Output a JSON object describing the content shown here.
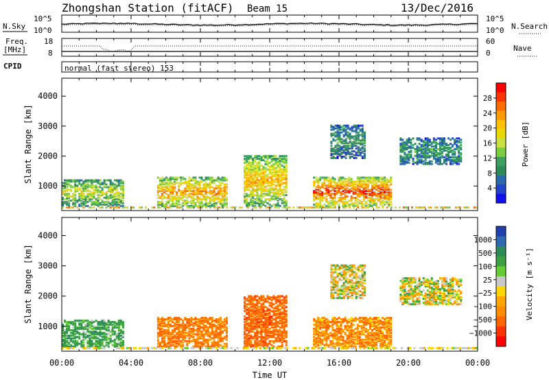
{
  "header": {
    "station": "Zhongshan Station (fitACF)",
    "beam": "Beam 15",
    "date": "13/Dec/2016"
  },
  "noise_panel": {
    "left_label": "N.Sky",
    "left_ticks": [
      "10^5",
      "10^0"
    ],
    "right_ticks": [
      "10^5",
      "10^0"
    ],
    "right_label": "N.Search"
  },
  "freq_panel": {
    "left_label_1": "Freq.",
    "left_label_2": "[MHz]",
    "left_ticks": [
      "18",
      "8"
    ],
    "right_ticks": [
      "60",
      "0"
    ],
    "right_label": "Nave"
  },
  "cpid": {
    "label": "CPID",
    "value": "normal (fast stereo) 153"
  },
  "power_panel": {
    "ylabel": "Slant Range [km]",
    "yticks": [
      "4000",
      "3000",
      "2000",
      "1000"
    ],
    "colorbar_label": "Power [dB]",
    "colorbar_ticks": [
      "28",
      "24",
      "20",
      "16",
      "12",
      "8",
      "4"
    ],
    "colors": [
      "#ff0000",
      "#ff3300",
      "#ff6a00",
      "#ff9900",
      "#ffc000",
      "#e8d800",
      "#c8e040",
      "#7acc40",
      "#3c9e60",
      "#2e8b57",
      "#2a6aa8",
      "#2244cc",
      "#1010ee"
    ]
  },
  "velocity_panel": {
    "ylabel": "Slant Range [km]",
    "yticks": [
      "4000",
      "3000",
      "2000",
      "1000"
    ],
    "colorbar_label": "Velocity [m s⁻¹]",
    "colorbar_ticks": [
      "1000",
      "500",
      "100",
      "25",
      "−25",
      "−100",
      "−500",
      "−1000"
    ],
    "colors": [
      "#2040b0",
      "#2e6ab0",
      "#2e8b57",
      "#3ca040",
      "#66cc33",
      "#c8c8c8",
      "#ffd700",
      "#ffa500",
      "#ff8c00",
      "#ff6600",
      "#ff3300",
      "#ff0000"
    ]
  },
  "x_axis": {
    "ticks": [
      "00:00",
      "04:00",
      "08:00",
      "12:00",
      "16:00",
      "20:00",
      "00:00"
    ],
    "label": "Time UT"
  },
  "chart_data": [
    {
      "type": "heatmap",
      "title": "Power",
      "xlabel": "Time UT",
      "ylabel": "Slant Range [km]",
      "xlim": [
        "00:00",
        "24:00"
      ],
      "ylim": [
        180,
        4600
      ],
      "colorbar": {
        "label": "Power [dB]",
        "range": [
          0,
          30
        ],
        "ticks": [
          4,
          8,
          12,
          16,
          20,
          24,
          28
        ]
      },
      "echo_regions": [
        {
          "t_start": 0.0,
          "t_end": 3.5,
          "r_min": 300,
          "r_max": 1200,
          "level_db": 14
        },
        {
          "t_start": 5.5,
          "t_end": 9.5,
          "r_min": 300,
          "r_max": 1250,
          "level_db": 20
        },
        {
          "t_start": 10.5,
          "t_end": 13.0,
          "r_min": 300,
          "r_max": 2000,
          "level_db": 18
        },
        {
          "t_start": 14.5,
          "t_end": 19.0,
          "r_min": 300,
          "r_max": 1250,
          "level_db": 24
        },
        {
          "t_start": 15.5,
          "t_end": 17.5,
          "r_min": 1900,
          "r_max": 3000,
          "level_db": 8
        },
        {
          "t_start": 19.5,
          "t_end": 23.0,
          "r_min": 1700,
          "r_max": 2600,
          "level_db": 8
        }
      ]
    },
    {
      "type": "heatmap",
      "title": "Velocity",
      "xlabel": "Time UT",
      "ylabel": "Slant Range [km]",
      "xlim": [
        "00:00",
        "24:00"
      ],
      "ylim": [
        180,
        4600
      ],
      "colorbar": {
        "label": "Velocity [m s⁻¹]",
        "ticks": [
          1000,
          500,
          100,
          25,
          -25,
          -100,
          -500,
          -1000
        ]
      },
      "echo_regions": [
        {
          "t_start": 0.0,
          "t_end": 3.5,
          "r_min": 300,
          "r_max": 1200,
          "velocity": 150
        },
        {
          "t_start": 5.5,
          "t_end": 9.5,
          "r_min": 300,
          "r_max": 1250,
          "velocity": -200
        },
        {
          "t_start": 10.5,
          "t_end": 13.0,
          "r_min": 300,
          "r_max": 2000,
          "velocity": -300
        },
        {
          "t_start": 14.5,
          "t_end": 19.0,
          "r_min": 300,
          "r_max": 1250,
          "velocity": -150
        },
        {
          "t_start": 15.5,
          "t_end": 17.5,
          "r_min": 1900,
          "r_max": 3000,
          "velocity": 0
        },
        {
          "t_start": 19.5,
          "t_end": 23.0,
          "r_min": 1700,
          "r_max": 2600,
          "velocity": 0
        }
      ]
    }
  ]
}
